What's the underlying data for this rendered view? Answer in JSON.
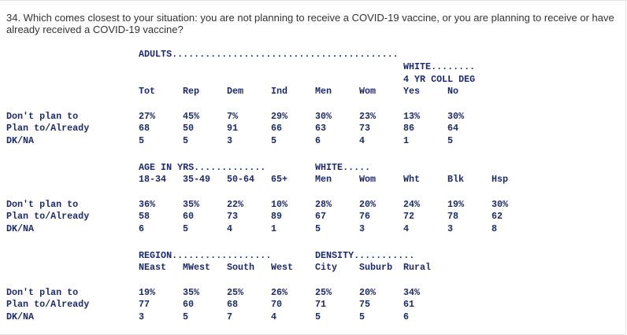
{
  "question": "34. Which comes closest to your situation: you are not planning to receive a COVID-19 vaccine, or you are planning to receive or have already received a COVID-19 vaccine?",
  "row_labels": [
    "Don't plan to",
    "Plan to/Already",
    "DK/NA"
  ],
  "sections": [
    {
      "group_header_adults": "ADULTS.........................................",
      "group_header_white_line1": "WHITE........",
      "group_header_white_line2": "4 YR COLL DEG",
      "columns": [
        "Tot",
        "Rep",
        "Dem",
        "Ind",
        "Men",
        "Wom",
        "Yes",
        "No"
      ],
      "rows": [
        [
          "27%",
          "45%",
          "7%",
          "29%",
          "30%",
          "23%",
          "13%",
          "30%"
        ],
        [
          "68",
          "50",
          "91",
          "66",
          "63",
          "73",
          "86",
          "64"
        ],
        [
          "5",
          "5",
          "3",
          "5",
          "6",
          "4",
          "1",
          "5"
        ]
      ]
    },
    {
      "group_header_age": "AGE IN YRS.............",
      "group_header_white": "WHITE.....",
      "columns": [
        "18-34",
        "35-49",
        "50-64",
        "65+",
        "Men",
        "Wom",
        "Wht",
        "Blk",
        "Hsp"
      ],
      "rows": [
        [
          "36%",
          "35%",
          "22%",
          "10%",
          "28%",
          "20%",
          "24%",
          "19%",
          "30%"
        ],
        [
          "58",
          "60",
          "73",
          "89",
          "67",
          "76",
          "72",
          "78",
          "62"
        ],
        [
          "6",
          "5",
          "4",
          "1",
          "5",
          "3",
          "4",
          "3",
          "8"
        ]
      ]
    },
    {
      "group_header_region": "REGION..................",
      "group_header_density": "DENSITY...........",
      "columns": [
        "NEast",
        "MWest",
        "South",
        "West",
        "City",
        "Suburb",
        "Rural"
      ],
      "rows": [
        [
          "19%",
          "35%",
          "25%",
          "26%",
          "25%",
          "20%",
          "34%"
        ],
        [
          "77",
          "60",
          "68",
          "70",
          "71",
          "75",
          "61"
        ],
        [
          "3",
          "5",
          "7",
          "4",
          "5",
          "5",
          "6"
        ]
      ]
    }
  ]
}
